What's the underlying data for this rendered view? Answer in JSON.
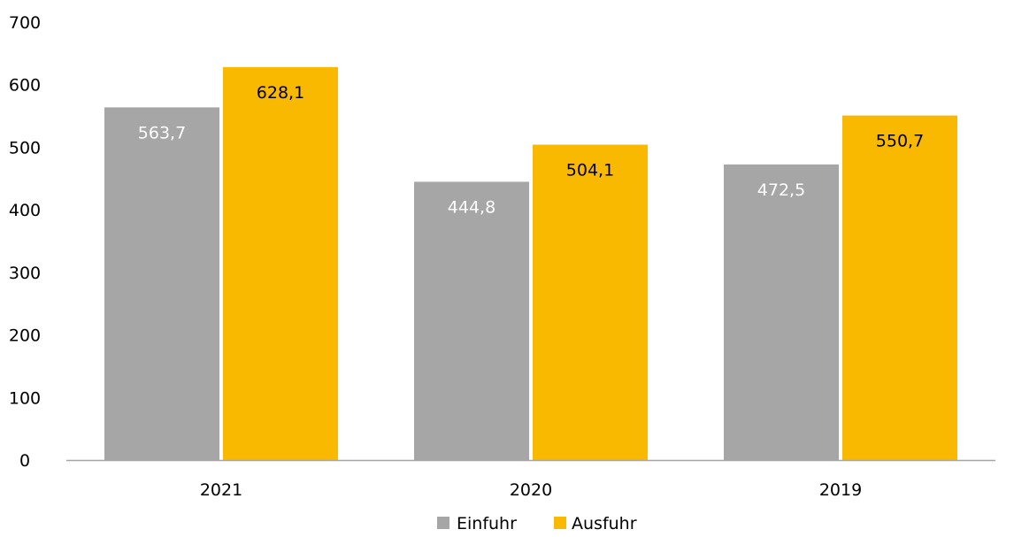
{
  "chart_data": {
    "type": "bar",
    "categories": [
      "2021",
      "2020",
      "2019"
    ],
    "series": [
      {
        "name": "Einfuhr",
        "values": [
          563.7,
          444.8,
          472.5
        ],
        "value_labels": [
          "563,7",
          "444,8",
          "472,5"
        ],
        "color": "#a6a6a6",
        "label_color": "#ffffff"
      },
      {
        "name": "Ausfuhr",
        "values": [
          628.1,
          504.1,
          550.7
        ],
        "value_labels": [
          "628,1",
          "504,1",
          "550,7"
        ],
        "color": "#f9b900",
        "label_color": "#000000"
      }
    ],
    "ylim": [
      0,
      700
    ],
    "yticks": [
      "0",
      "100",
      "200",
      "300",
      "400",
      "500",
      "600",
      "700"
    ],
    "grid": false,
    "legend_position": "bottom-center",
    "axis_color": "#a6a6a6"
  }
}
